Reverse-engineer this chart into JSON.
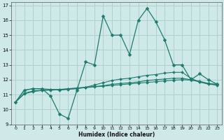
{
  "xlabel": "Humidex (Indice chaleur)",
  "xlim": [
    -0.5,
    23.5
  ],
  "ylim": [
    9,
    17.2
  ],
  "yticks": [
    9,
    10,
    11,
    12,
    13,
    14,
    15,
    16,
    17
  ],
  "xticks": [
    0,
    1,
    2,
    3,
    4,
    5,
    6,
    7,
    8,
    9,
    10,
    11,
    12,
    13,
    14,
    15,
    16,
    17,
    18,
    19,
    20,
    21,
    22,
    23
  ],
  "bg_color": "#cfe9e9",
  "line_color": "#1e7b6e",
  "grid_color": "#b0d0d0",
  "line1": [
    10.5,
    11.3,
    11.4,
    11.4,
    10.9,
    9.7,
    9.4,
    11.3,
    13.2,
    13.0,
    16.3,
    15.0,
    15.0,
    13.7,
    16.0,
    16.8,
    15.9,
    14.7,
    13.0,
    13.0,
    12.0,
    12.4,
    12.0,
    11.7
  ],
  "line2": [
    10.5,
    11.3,
    11.4,
    11.4,
    11.35,
    11.3,
    11.35,
    11.4,
    11.5,
    11.65,
    11.8,
    11.95,
    12.05,
    12.1,
    12.2,
    12.3,
    12.35,
    12.45,
    12.5,
    12.5,
    12.1,
    11.85,
    11.75,
    11.7
  ],
  "line3": [
    10.5,
    11.1,
    11.25,
    11.3,
    11.35,
    11.35,
    11.4,
    11.45,
    11.5,
    11.55,
    11.6,
    11.7,
    11.75,
    11.8,
    11.85,
    11.95,
    12.0,
    12.05,
    12.1,
    12.1,
    12.0,
    11.85,
    11.7,
    11.65
  ],
  "line4": [
    10.5,
    11.05,
    11.2,
    11.28,
    11.3,
    11.33,
    11.38,
    11.42,
    11.47,
    11.52,
    11.57,
    11.62,
    11.67,
    11.72,
    11.77,
    11.82,
    11.87,
    11.92,
    11.97,
    12.0,
    11.98,
    11.9,
    11.75,
    11.62
  ]
}
